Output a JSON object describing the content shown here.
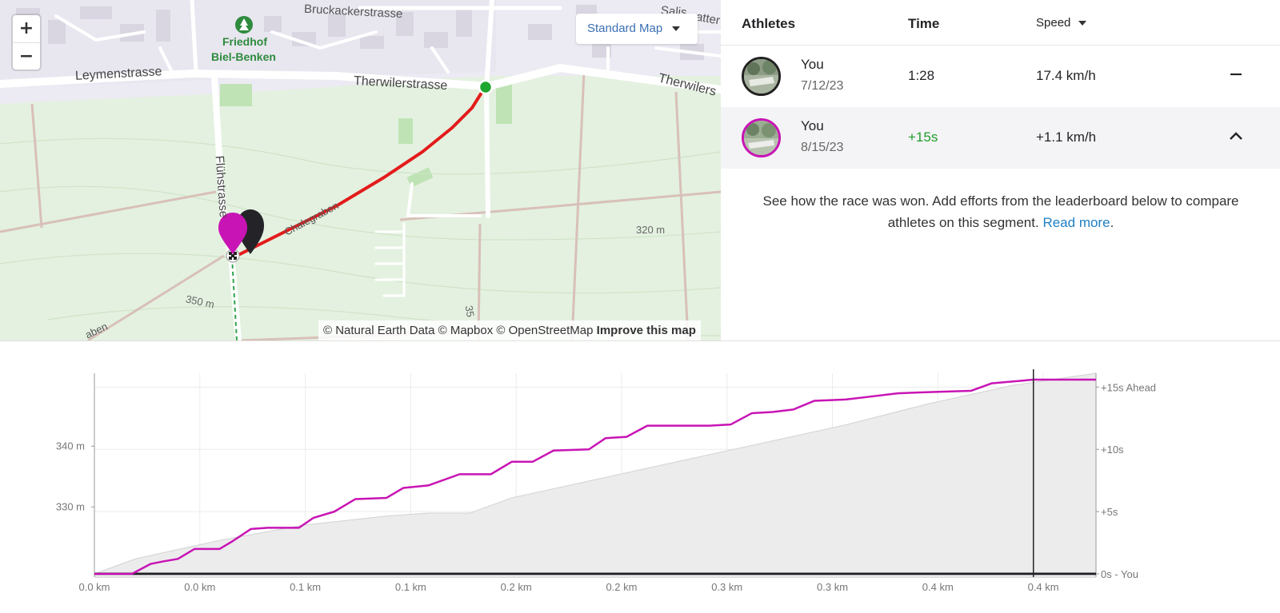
{
  "map": {
    "zoom_in": "+",
    "zoom_out": "−",
    "style_button": "Standard Map",
    "attribution_text": "© Natural Earth Data © Mapbox © OpenStreetMap",
    "improve_link": "Improve this map",
    "labels": {
      "street_1": "Bruckackerstrasse",
      "street_2": "Leymenstrasse",
      "street_3": "Therwilerstrasse",
      "street_4": "Therwilers",
      "street_5": "Flühstrasse",
      "street_6": "Chalegraben",
      "street_7": "Salis",
      "street_8": "atter",
      "street_9": "aben",
      "poi": "Friedhof",
      "poi_2": "Biel-Benken",
      "contour_1": "320 m",
      "contour_2": "350 m",
      "contour_3": "35"
    },
    "colors": {
      "route": "#e31b1b",
      "start": "#1ea62e",
      "you_current": "#c814b4",
      "you_best": "#242428"
    }
  },
  "panel": {
    "headers": {
      "athletes": "Athletes",
      "time": "Time",
      "speed": "Speed"
    },
    "rows": [
      {
        "name": "You",
        "date": "7/12/23",
        "time": "1:28",
        "speed": "17.4 km/h",
        "action_icon": "minus-icon"
      },
      {
        "name": "You",
        "date": "8/15/23",
        "time": "+15s",
        "speed": "+1.1 km/h",
        "action_icon": "chevron-up-icon"
      }
    ],
    "message": "See how the race was won. Add efforts from the leaderboard below to compare athletes on this segment.",
    "read_more": "Read more",
    "message_end": "."
  },
  "chart_data": {
    "type": "line",
    "x_tick_labels": [
      "0.0 km",
      "0.0 km",
      "0.1 km",
      "0.1 km",
      "0.2 km",
      "0.2 km",
      "0.3 km",
      "0.3 km",
      "0.4 km",
      "0.4 km"
    ],
    "x_range": [
      0,
      0.48
    ],
    "left_axis": {
      "ticks": [
        "340 m",
        "330 m"
      ],
      "range_m": [
        319,
        352
      ]
    },
    "right_axis": {
      "ticks": [
        "+15s Ahead",
        "+10s",
        "+5s",
        "0s - You"
      ],
      "range_s": [
        0,
        15.6
      ]
    },
    "elevation": {
      "x": [
        0,
        0.02,
        0.06,
        0.1,
        0.14,
        0.16,
        0.18,
        0.2,
        0.24,
        0.28,
        0.32,
        0.36,
        0.4,
        0.44,
        0.48
      ],
      "y": [
        319,
        321.5,
        324.5,
        327,
        328.5,
        329,
        329,
        331.5,
        334.5,
        337.5,
        340.5,
        343.5,
        347,
        350,
        352
      ]
    },
    "series": [
      {
        "name": "",
        "x": [
          0,
          0.018,
          0.027,
          0.033,
          0.04,
          0.048,
          0.06,
          0.066,
          0.075,
          0.083,
          0.098,
          0.105,
          0.115,
          0.125,
          0.14,
          0.148,
          0.16,
          0.175,
          0.19,
          0.2,
          0.21,
          0.22,
          0.237,
          0.245,
          0.255,
          0.265,
          0.295,
          0.305,
          0.315,
          0.325,
          0.335,
          0.345,
          0.36,
          0.37,
          0.385,
          0.4,
          0.42,
          0.43,
          0.45,
          0.48
        ],
        "y": [
          0,
          0,
          0.8,
          1.0,
          1.2,
          2.0,
          2.0,
          2.6,
          3.6,
          3.7,
          3.7,
          4.5,
          5.0,
          6.0,
          6.1,
          6.9,
          7.1,
          8.0,
          8.0,
          9.0,
          9.0,
          9.9,
          10.0,
          10.9,
          11.0,
          11.9,
          11.9,
          12.0,
          12.9,
          13.0,
          13.2,
          13.9,
          14.0,
          14.2,
          14.5,
          14.6,
          14.7,
          15.3,
          15.6,
          15.6
        ]
      }
    ],
    "cursor_x": 0.45,
    "colors": {
      "compare_line": "#c814b4",
      "baseline": "#242428",
      "elevation_fill": "#ececec"
    }
  }
}
